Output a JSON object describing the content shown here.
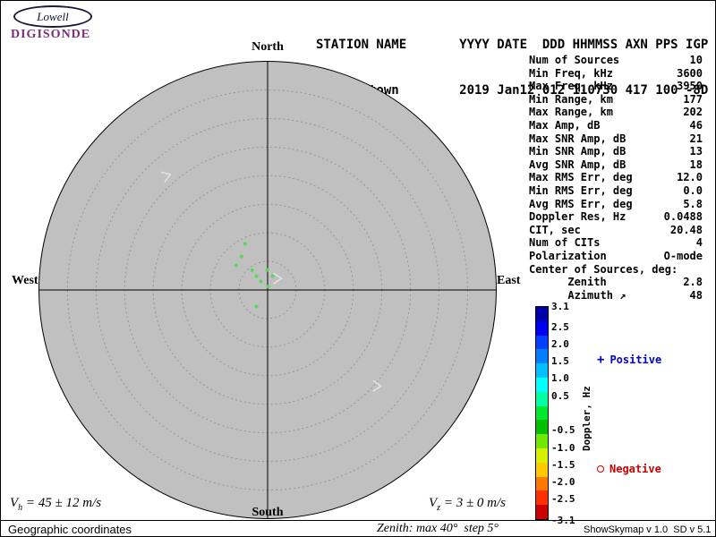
{
  "header": {
    "logo": {
      "brand": "Lowell",
      "product": "DIGISONDE",
      "color": "#7b2d7b"
    },
    "line1": "STATION NAME       YYYY DATE  DDD HHMMSS AXN PPS IGP",
    "line2": "Grahamstown        2019 Jan12 012 110730 417 100 -8D"
  },
  "stats": {
    "rows": [
      {
        "label": "Num of Sources",
        "value": "10"
      },
      {
        "label": "Min Freq, kHz",
        "value": "3600"
      },
      {
        "label": "Max Freq, kHz",
        "value": "3950"
      },
      {
        "label": "Min Range, km",
        "value": "177"
      },
      {
        "label": "Max Range, km",
        "value": "202"
      },
      {
        "label": "Max Amp, dB",
        "value": "46"
      },
      {
        "label": "Max SNR Amp, dB",
        "value": "21"
      },
      {
        "label": "Min SNR Amp, dB",
        "value": "13"
      },
      {
        "label": "Avg SNR Amp, dB",
        "value": "18"
      },
      {
        "label": "Max RMS Err, deg",
        "value": "12.0"
      },
      {
        "label": "Min RMS Err, deg",
        "value": "0.0"
      },
      {
        "label": "Avg RMS Err, deg",
        "value": "5.8"
      },
      {
        "label": "Doppler Res, Hz",
        "value": "0.0488"
      },
      {
        "label": "CIT, sec",
        "value": "20.48"
      },
      {
        "label": "Num of CITs",
        "value": "4"
      },
      {
        "label": "Polarization",
        "value": "O-mode"
      },
      {
        "label": "Center of Sources, deg:",
        "value": ""
      },
      {
        "label": "      Zenith",
        "value": "2.8"
      },
      {
        "label": "      Azimuth ↗",
        "value": "48"
      }
    ]
  },
  "chart_data": {
    "type": "scatter",
    "projection": "polar-skymap",
    "compass": {
      "north": "North",
      "south": "South",
      "east": "East",
      "west": "West"
    },
    "zenith_max_deg": 40,
    "zenith_step_deg": 5,
    "circle_fill": "#c0c0c0",
    "ring_color": "#979797",
    "marker_color": "#5cd65c",
    "arrow_color": "#e2e2e2",
    "points": [
      {
        "azimuth_deg": 334,
        "zenith_deg": 9.0
      },
      {
        "azimuth_deg": 322,
        "zenith_deg": 7.4
      },
      {
        "azimuth_deg": 308,
        "zenith_deg": 7.0
      },
      {
        "azimuth_deg": 322,
        "zenith_deg": 4.4
      },
      {
        "azimuth_deg": 321,
        "zenith_deg": 3.1
      },
      {
        "azimuth_deg": 359,
        "zenith_deg": 3.5
      },
      {
        "azimuth_deg": 20,
        "zenith_deg": 2.6
      },
      {
        "azimuth_deg": 322,
        "zenith_deg": 1.9
      },
      {
        "azimuth_deg": 214,
        "zenith_deg": 3.5
      },
      {
        "azimuth_deg": 5,
        "zenith_deg": 0.6
      }
    ],
    "arrows": [
      {
        "fx": -0.44,
        "fy": -0.5,
        "rot": -20
      },
      {
        "fx": 0.48,
        "fy": 0.42,
        "rot": 0
      },
      {
        "fx": 0.045,
        "fy": -0.05,
        "rot": 0
      }
    ],
    "colorbar": {
      "title": "Doppler, Hz",
      "max": 3.1,
      "min": -3.1,
      "tick_values": [
        3.1,
        2.5,
        2.0,
        1.5,
        1.0,
        0.5,
        -0.5,
        -1.0,
        -1.5,
        -2.0,
        -2.5,
        -3.1
      ],
      "tick_labels": [
        "3.1",
        "2.5",
        "2.0",
        "1.5",
        "1.0",
        "0.5",
        "-0.5",
        "-1.0",
        "-1.5",
        "-2.0",
        "-2.5",
        "-3.1"
      ],
      "colors_top_to_bottom": [
        "#0000a8",
        "#0000f0",
        "#0040ff",
        "#0080ff",
        "#00c0ff",
        "#00ffff",
        "#00ffa0",
        "#00e830",
        "#00c000",
        "#70e800",
        "#d8f000",
        "#ffc800",
        "#ff7800",
        "#ff3000",
        "#c80000"
      ]
    },
    "legend": {
      "positive": {
        "symbol": "+",
        "label": "Positive",
        "color": "#0000cd"
      },
      "negative": {
        "symbol": "o",
        "label": "Negative",
        "color": "#cd0000"
      }
    }
  },
  "footer": {
    "vh": {
      "prefix": "V",
      "sub": "h",
      "rest": " = 45 ± 12 m/s"
    },
    "vz": {
      "prefix": "V",
      "sub": "z",
      "rest": " = 3 ± 0 m/s"
    },
    "coordinates_label": "Geographic coordinates",
    "zenith_note": "Zenith: max 40°  step 5°",
    "version": "ShowSkymap v 1.0  SD v 5.1"
  }
}
